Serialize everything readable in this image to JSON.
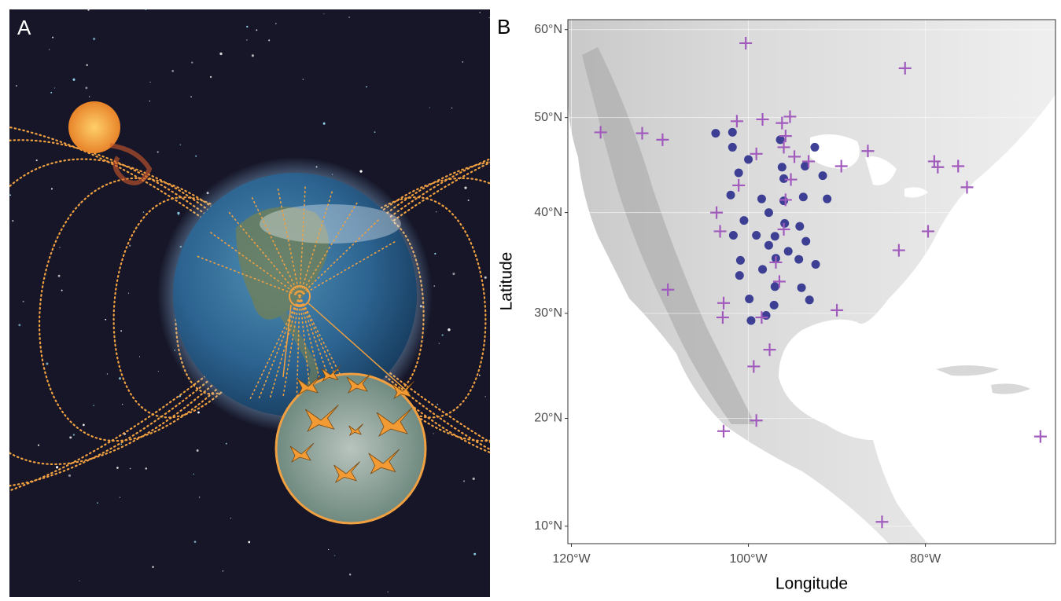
{
  "panel_a": {
    "label": "A"
  },
  "chart_data": {
    "type": "scatter",
    "panel_label": "B",
    "x_label": "Longitude",
    "y_label": "Latitude",
    "xlim": [
      -120.4,
      -65.3
    ],
    "ylim": [
      8.4,
      61.2
    ],
    "xticks": [
      {
        "value": -120,
        "label": "120°W"
      },
      {
        "value": -100,
        "label": "100°W"
      },
      {
        "value": -80,
        "label": "80°W"
      }
    ],
    "yticks": [
      {
        "value": 10,
        "label": "10°N"
      },
      {
        "value": 20,
        "label": "20°N"
      },
      {
        "value": 30,
        "label": "30°N"
      },
      {
        "value": 40,
        "label": "40°N"
      },
      {
        "value": 50,
        "label": "50°N"
      },
      {
        "value": 60,
        "label": "60°N"
      }
    ],
    "grid": true,
    "series": [
      {
        "color": "#2b2e8c",
        "marker": "circle",
        "x": [
          -103.7,
          -101.8,
          -96.4,
          -92.5,
          -101.8,
          -100.0,
          -93.6,
          -96.2,
          -101.1,
          -91.6,
          -96.0,
          -102.0,
          -98.5,
          -93.8,
          -91.1,
          -96.0,
          -97.7,
          -100.5,
          -95.9,
          -97.0,
          -94.2,
          -101.7,
          -99.1,
          -93.5,
          -97.7,
          -95.5,
          -100.9,
          -96.9,
          -94.3,
          -92.4,
          -98.4,
          -101.0,
          -97.0,
          -94.0,
          -99.9,
          -97.1,
          -93.1,
          -98.0,
          -99.7
        ],
        "values": [
          48.3,
          48.4,
          47.6,
          46.8,
          46.8,
          45.5,
          44.8,
          44.7,
          44.1,
          43.8,
          43.5,
          41.8,
          41.4,
          41.6,
          41.4,
          41.2,
          40.0,
          39.2,
          38.9,
          37.6,
          38.6,
          37.7,
          37.7,
          37.1,
          36.7,
          36.1,
          35.2,
          35.4,
          35.3,
          34.8,
          34.3,
          33.7,
          32.6,
          32.5,
          31.4,
          30.8,
          31.3,
          29.8,
          29.3
        ]
      },
      {
        "color": "#a05bbd",
        "marker": "cross",
        "x": [
          -100.3,
          -82.3,
          -116.7,
          -112.0,
          -109.7,
          -101.3,
          -98.4,
          -96.2,
          -95.3,
          -95.8,
          -96.0,
          -99.1,
          -94.8,
          -93.2,
          -86.5,
          -89.5,
          -79.0,
          -78.6,
          -76.3,
          -101.1,
          -95.2,
          -75.3,
          -95.8,
          -103.6,
          -103.2,
          -96.0,
          -79.7,
          -83.0,
          -96.9,
          -96.5,
          -109.1,
          -102.8,
          -90.0,
          -102.9,
          -98.5,
          -97.6,
          -99.4,
          -102.8,
          -99.1,
          -84.9,
          -67.0
        ],
        "values": [
          58.4,
          55.5,
          48.4,
          48.3,
          47.6,
          49.6,
          49.8,
          49.4,
          50.1,
          48.0,
          46.8,
          46.1,
          45.8,
          45.3,
          46.4,
          44.8,
          45.3,
          44.7,
          44.8,
          42.8,
          43.4,
          42.6,
          41.3,
          40.0,
          38.1,
          38.3,
          38.1,
          36.2,
          35.0,
          33.1,
          32.3,
          31.0,
          30.3,
          29.6,
          29.6,
          26.5,
          24.9,
          18.8,
          19.8,
          10.4,
          18.3
        ]
      }
    ]
  }
}
